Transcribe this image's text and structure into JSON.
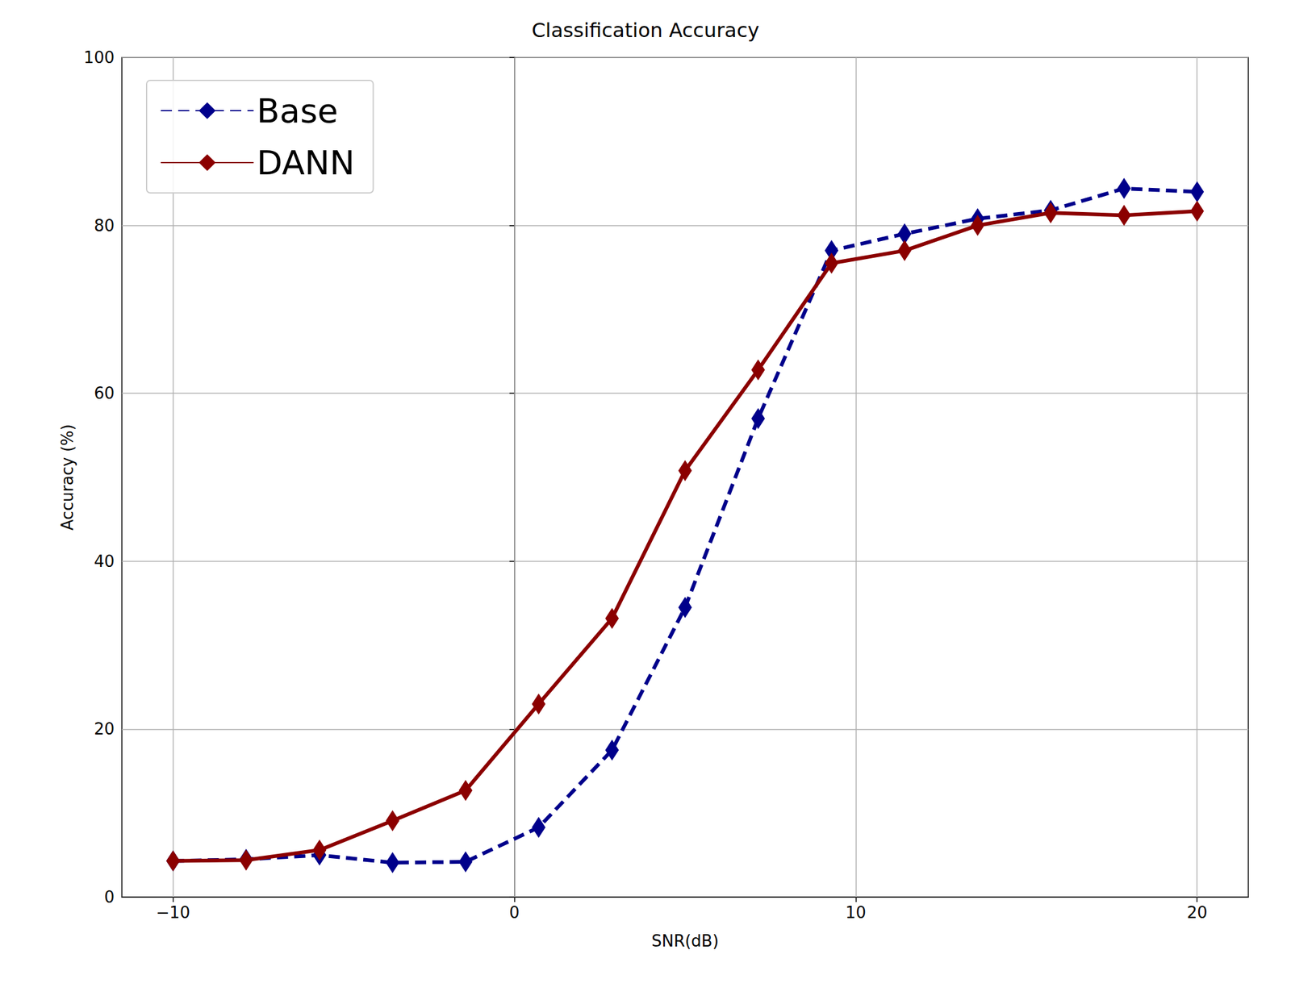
{
  "chart_data": {
    "type": "line",
    "title": "Classification Accuracy",
    "x_label": "SNR(dB)",
    "y_label": "Accuracy (%)",
    "x": [
      -10,
      -7.86,
      -5.71,
      -3.57,
      -1.43,
      0.71,
      2.86,
      5,
      7.14,
      9.29,
      11.43,
      13.57,
      15.71,
      17.86,
      20
    ],
    "series": [
      {
        "name": "Base",
        "color": "#00008b",
        "marker": "diamond",
        "line_style": "dashed",
        "values": [
          4.3,
          4.5,
          5.0,
          4.1,
          4.2,
          8.3,
          17.5,
          34.5,
          57.0,
          77.0,
          79.0,
          80.8,
          81.8,
          84.4,
          84.0
        ]
      },
      {
        "name": "DANN",
        "color": "#8b0000",
        "marker": "diamond",
        "line_style": "solid",
        "values": [
          4.3,
          4.4,
          5.6,
          9.1,
          12.7,
          23.0,
          33.2,
          50.8,
          62.8,
          75.5,
          77.0,
          80.0,
          81.5,
          81.2,
          81.7
        ]
      }
    ],
    "xlim": [
      -11.5,
      21.5
    ],
    "xticks": [
      {
        "value": -10,
        "label": "−10"
      },
      0,
      10,
      20
    ],
    "ylim": [
      0,
      100
    ],
    "yticks": [
      0,
      20,
      40,
      60,
      80,
      100
    ],
    "grid": true,
    "legend": "upper left"
  }
}
